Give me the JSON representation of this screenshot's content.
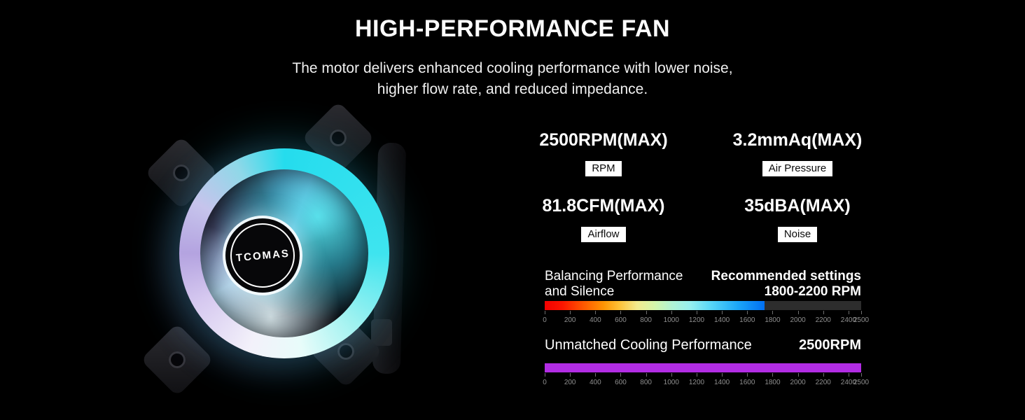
{
  "page": {
    "background": "#000000"
  },
  "header": {
    "title": "HIGH-PERFORMANCE FAN",
    "subtitle_line1": "The motor delivers enhanced cooling performance with lower noise,",
    "subtitle_line2": "higher flow rate, and reduced impedance."
  },
  "product": {
    "brand_logo": "TCOMAS",
    "led_colors": [
      "#25dced",
      "#e8fcfa",
      "#b4a3e0"
    ]
  },
  "specs": [
    {
      "value": "2500RPM(MAX)",
      "label": "RPM"
    },
    {
      "value": "3.2mmAq(MAX)",
      "label": "Air Pressure"
    },
    {
      "value": "81.8CFM(MAX)",
      "label": "Airflow"
    },
    {
      "value": "35dBA(MAX)",
      "label": "Noise"
    }
  ],
  "chart_data": [
    {
      "type": "bar",
      "title": "Balancing Performance and Silence",
      "title_line1": "Balancing Performance",
      "title_line2": "and Silence",
      "annotation_line1": "Recommended settings",
      "annotation_line2": "1800-2200 RPM",
      "xlim": [
        0,
        2500
      ],
      "scale": [
        0,
        200,
        400,
        600,
        800,
        1000,
        1200,
        1400,
        1600,
        1800,
        2000,
        2200,
        2400,
        2500
      ],
      "highlight_range": [
        0,
        1800
      ],
      "recommended_range_rpm": [
        1800,
        2200
      ],
      "fill_style": "width:69.5%",
      "gradient_colors": [
        "#f20000",
        "#ff5a00",
        "#ff9604",
        "#fdc238",
        "#f3ea8e",
        "#d4f6ab",
        "#b0f4d5",
        "#97f0ef",
        "#55d5f8",
        "#1ba6f8",
        "#016ff2"
      ],
      "track_color": "#2d2d2d"
    },
    {
      "type": "bar",
      "title": "Unmatched Cooling Performance",
      "annotation": "2500RPM",
      "xlim": [
        0,
        2500
      ],
      "scale": [
        0,
        200,
        400,
        600,
        800,
        1000,
        1200,
        1400,
        1600,
        1800,
        2000,
        2200,
        2400,
        2500
      ],
      "highlight_range": [
        0,
        2500
      ],
      "fill_style": "width:100%",
      "fill_color": "#b22ce4",
      "track_color": "#2d2d2d"
    }
  ]
}
